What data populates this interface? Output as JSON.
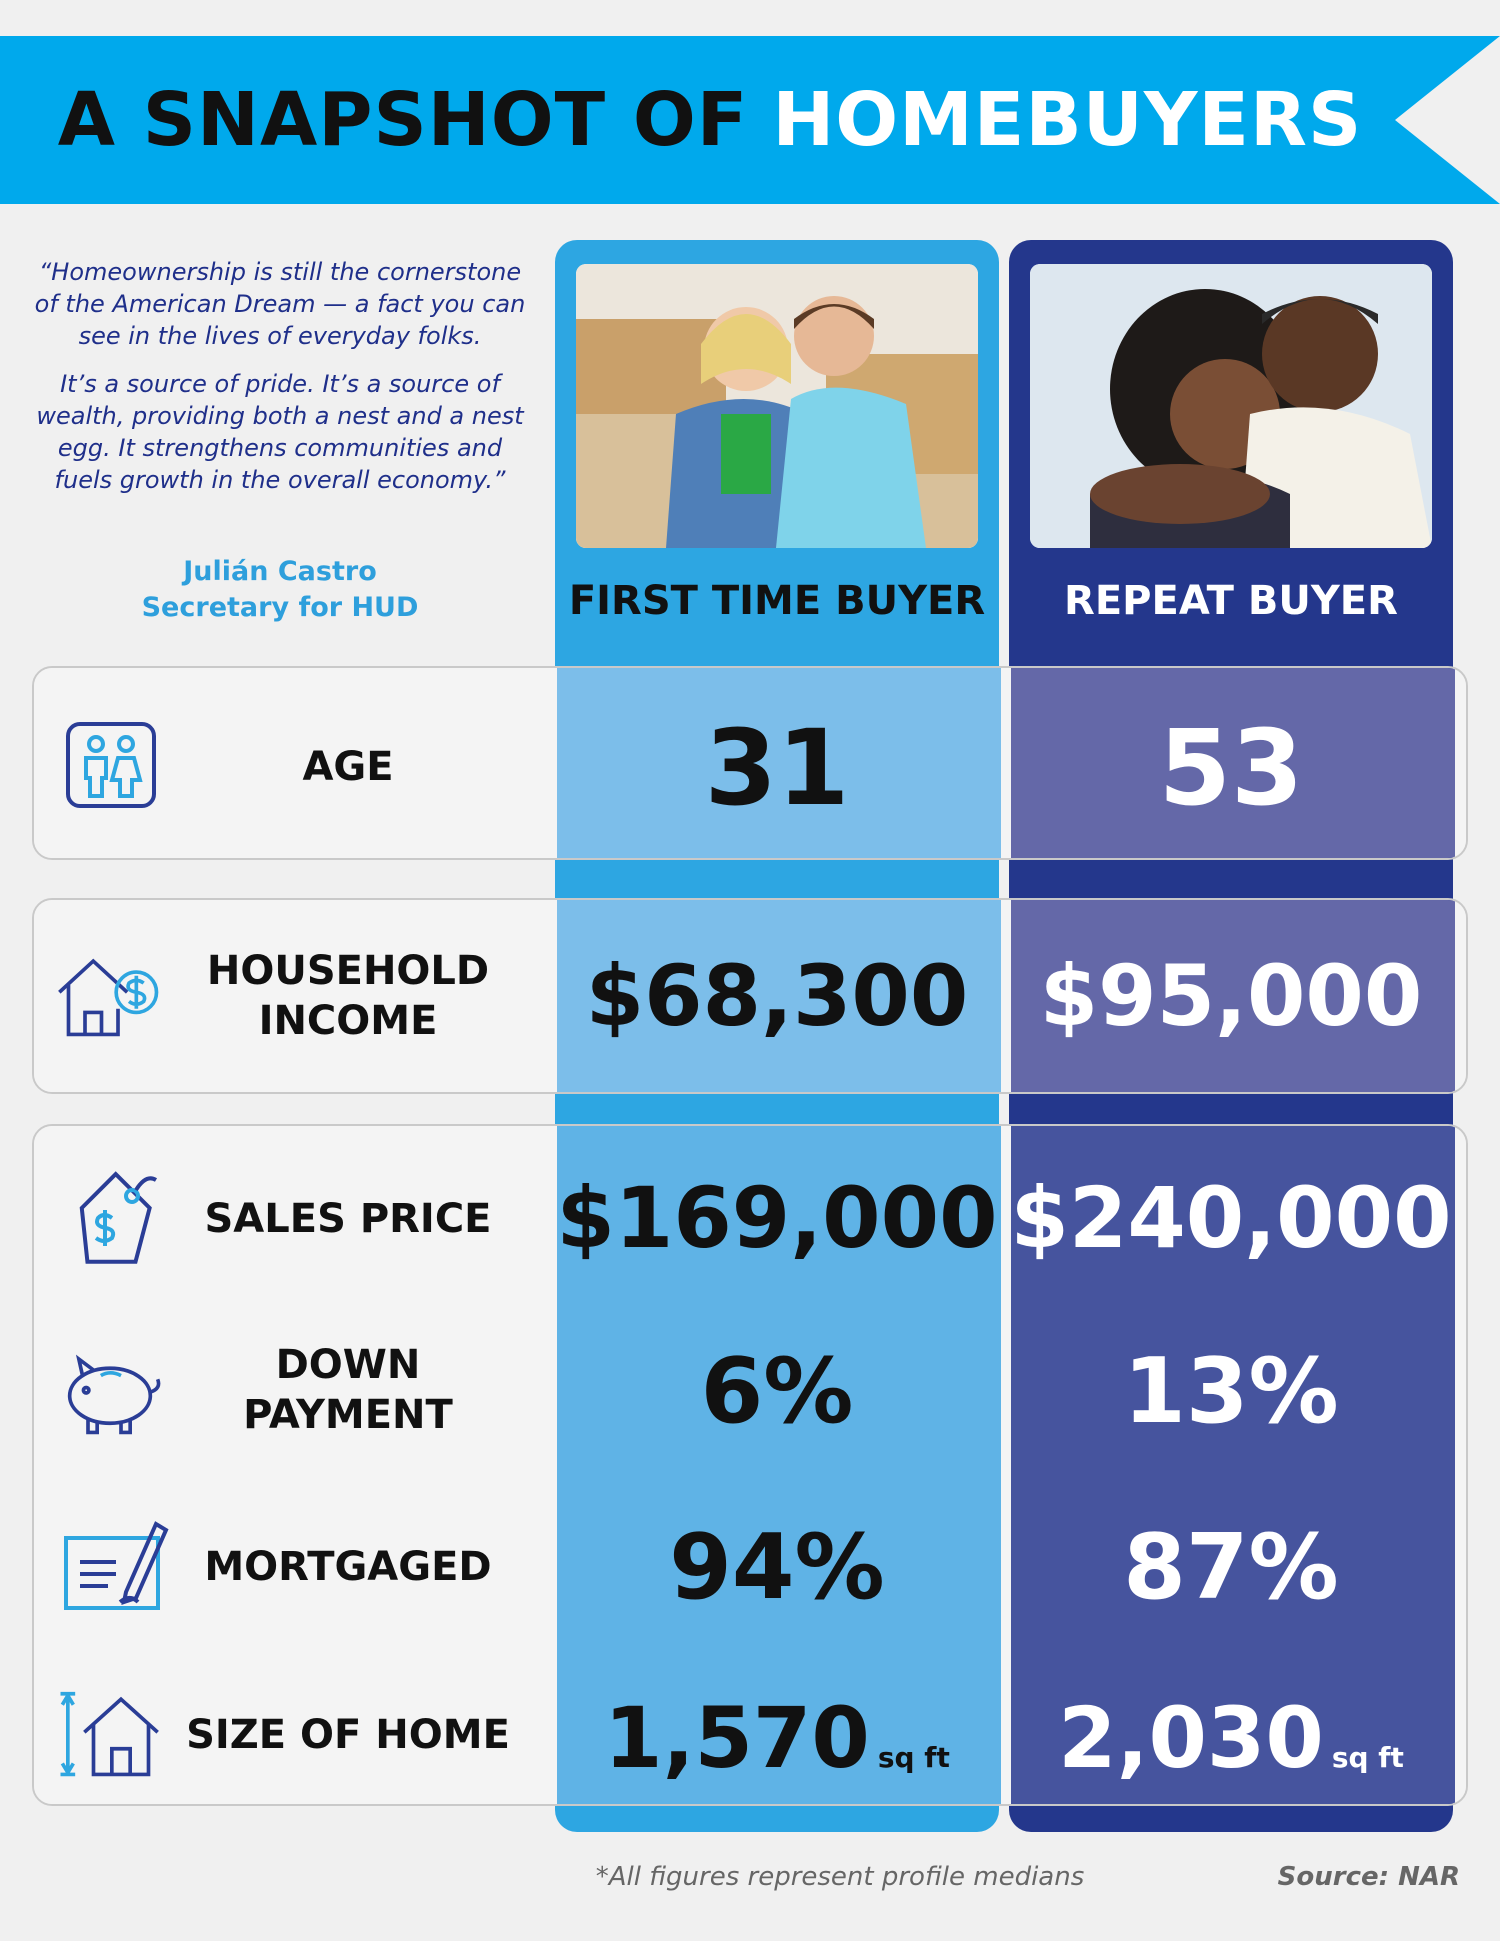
{
  "banner": {
    "title_dark": "A Snapshot of",
    "title_light": "Homebuyers",
    "color": "#00a9ec"
  },
  "quote": {
    "paragraphs": [
      "“Homeownership is still the cornerstone of the American Dream — a fact you can see in the lives of everyday folks.",
      "It’s a source of pride. It’s a source of wealth, providing both a nest and a nest egg. It strengthens communities and fuels growth in the overall economy.”"
    ],
    "author_name": "Julián Castro",
    "author_title": "Secretary for HUD"
  },
  "columns": {
    "first": {
      "label": "FIRST TIME BUYER",
      "color": "#2da6e2"
    },
    "repeat": {
      "label": "REPEAT BUYER",
      "color": "#24378c"
    }
  },
  "rows": {
    "age": {
      "label": "AGE",
      "icon": "people-icon",
      "first": "31",
      "repeat": "53"
    },
    "income": {
      "label_line1": "HOUSEHOLD",
      "label_line2": "INCOME",
      "icon": "house-dollar-icon",
      "first": "$68,300",
      "repeat": "$95,000"
    },
    "price": {
      "label": "SALES PRICE",
      "icon": "price-tag-icon",
      "first": "$169,000",
      "repeat": "$240,000"
    },
    "down": {
      "label_line1": "DOWN",
      "label_line2": "PAYMENT",
      "icon": "piggy-bank-icon",
      "first": "6%",
      "repeat": "13%"
    },
    "mortgaged": {
      "label": "MORTGAGED",
      "icon": "document-pen-icon",
      "first": "94%",
      "repeat": "87%"
    },
    "size": {
      "label": "SIZE OF HOME",
      "icon": "house-size-icon",
      "first": "1,570",
      "repeat": "2,030",
      "unit": "sq ft"
    }
  },
  "footer": {
    "note": "*All figures represent profile medians",
    "source": "Source: NAR"
  }
}
